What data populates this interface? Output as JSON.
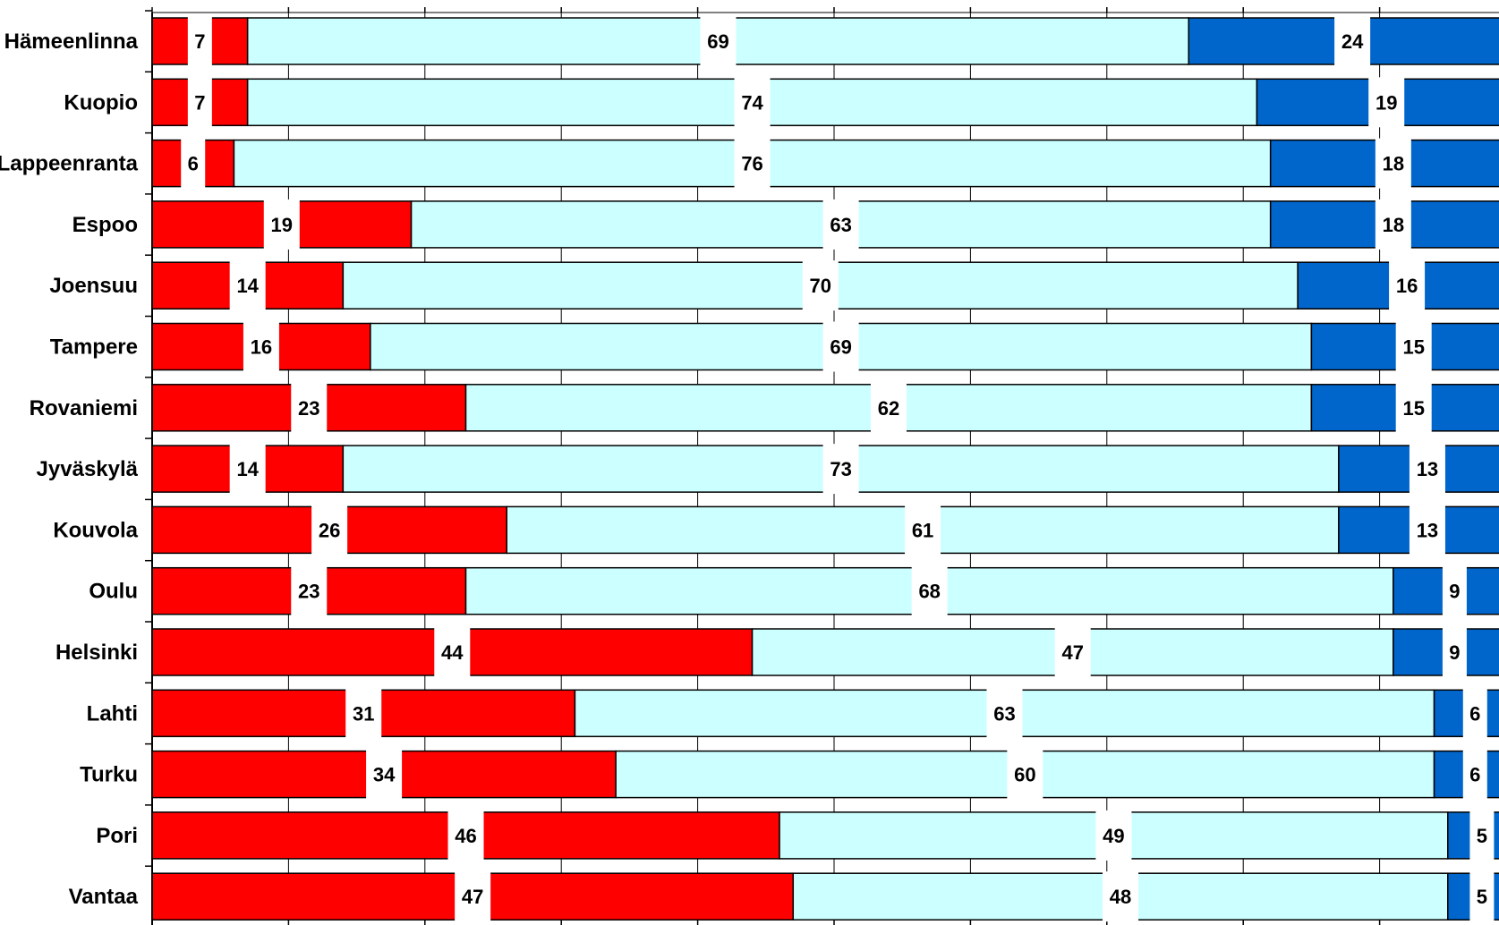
{
  "chart_data": {
    "type": "bar",
    "orientation": "horizontal",
    "stacked": true,
    "percent_stacked": true,
    "title": "",
    "xlabel": "",
    "ylabel": "",
    "xlim": [
      0,
      100
    ],
    "x_tick_step": 10,
    "grid": true,
    "legend": "none",
    "categories": [
      "Hämeenlinna",
      "Kuopio",
      "Lappeenranta",
      "Espoo",
      "Joensuu",
      "Tampere",
      "Rovaniemi",
      "Jyväskylä",
      "Kouvola",
      "Oulu",
      "Helsinki",
      "Lahti",
      "Turku",
      "Pori",
      "Vantaa"
    ],
    "series": [
      {
        "values": [
          7,
          7,
          6,
          19,
          14,
          16,
          23,
          14,
          26,
          23,
          44,
          31,
          34,
          46,
          47
        ],
        "color": "#ff0000"
      },
      {
        "values": [
          69,
          74,
          76,
          63,
          70,
          69,
          62,
          73,
          61,
          68,
          47,
          63,
          60,
          49,
          48
        ],
        "color": "#ccffff"
      },
      {
        "values": [
          24,
          19,
          18,
          18,
          16,
          15,
          15,
          13,
          13,
          9,
          9,
          6,
          6,
          5,
          5
        ],
        "color": "#0066cc"
      }
    ]
  }
}
